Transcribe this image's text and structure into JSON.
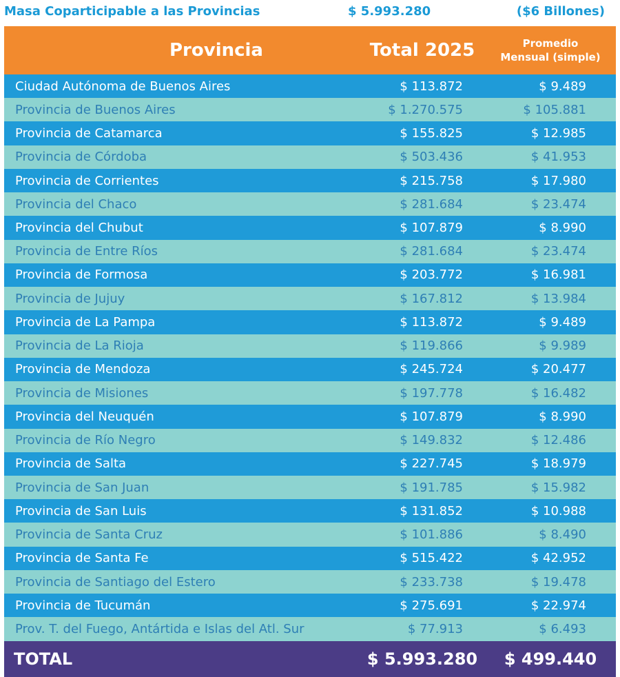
{
  "summary": {
    "label": "Masa Coparticipable a las Provincias",
    "total": "$ 5.993.280",
    "billions": "($6 Billones)"
  },
  "headers": {
    "province": "Provincia",
    "total": "Total 2025",
    "monthly_line1": "Promedio",
    "monthly_line2": "Mensual (simple)"
  },
  "rows": [
    {
      "name": "Ciudad Autónoma de Buenos Aires",
      "total": "$      113.872",
      "monthly": "$      9.489"
    },
    {
      "name": "Provincia de Buenos Aires",
      "total": "$ 1.270.575",
      "monthly": "$ 105.881"
    },
    {
      "name": "Provincia de Catamarca",
      "total": "$      155.825",
      "monthly": "$    12.985"
    },
    {
      "name": "Provincia de Córdoba",
      "total": "$   503.436",
      "monthly": "$    41.953"
    },
    {
      "name": "Provincia de Corrientes",
      "total": "$      215.758",
      "monthly": "$    17.980"
    },
    {
      "name": "Provincia del Chaco",
      "total": "$   281.684",
      "monthly": "$  23.474"
    },
    {
      "name": "Provincia del Chubut",
      "total": "$   107.879",
      "monthly": "$    8.990"
    },
    {
      "name": "Provincia de Entre Ríos",
      "total": "$ 281.684",
      "monthly": "$  23.474"
    },
    {
      "name": "Provincia de Formosa",
      "total": "$ 203.772",
      "monthly": "$    16.981"
    },
    {
      "name": "Provincia de Jujuy",
      "total": "$   167.812",
      "monthly": "$  13.984"
    },
    {
      "name": "Provincia de La Pampa",
      "total": "$    113.872",
      "monthly": "$      9.489"
    },
    {
      "name": "Provincia de La Rioja",
      "total": "$   119.866",
      "monthly": "$      9.989"
    },
    {
      "name": "Provincia de Mendoza",
      "total": "$ 245.724",
      "monthly": "$ 20.477"
    },
    {
      "name": "Provincia de Misiones",
      "total": "$   197.778",
      "monthly": "$  16.482"
    },
    {
      "name": "Provincia del Neuquén",
      "total": "$ 107.879",
      "monthly": "$    8.990"
    },
    {
      "name": "Provincia de Río Negro",
      "total": "$ 149.832",
      "monthly": "$  12.486"
    },
    {
      "name": "Provincia de Salta",
      "total": "$ 227.745",
      "monthly": "$    18.979"
    },
    {
      "name": "Provincia de San Juan",
      "total": "$   191.785",
      "monthly": "$    15.982"
    },
    {
      "name": "Provincia de San Luis",
      "total": "$ 131.852",
      "monthly": "$ 10.988"
    },
    {
      "name": "Provincia de Santa Cruz",
      "total": "$ 101.886",
      "monthly": "$    8.490"
    },
    {
      "name": "Provincia de Santa Fe",
      "total": "$ 515.422",
      "monthly": "$ 42.952"
    },
    {
      "name": "Provincia de Santiago del Estero",
      "total": "$ 233.738",
      "monthly": "$  19.478"
    },
    {
      "name": "Provincia de Tucumán",
      "total": "$ 275.691",
      "monthly": "$ 22.974"
    },
    {
      "name": "Prov. T. del Fuego, Antártida e Islas del Atl. Sur",
      "total": "$ 77.913",
      "monthly": "$    6.493"
    }
  ],
  "footer": {
    "label": "TOTAL",
    "total": "$ 5.993.280",
    "monthly": "$ 499.440"
  },
  "colors": {
    "header_orange": "#f28a2e",
    "row_blue": "#1f9bd8",
    "row_teal": "#8dd3d0",
    "footer_purple": "#4b3c86",
    "title_blue": "#1a9ad6"
  }
}
